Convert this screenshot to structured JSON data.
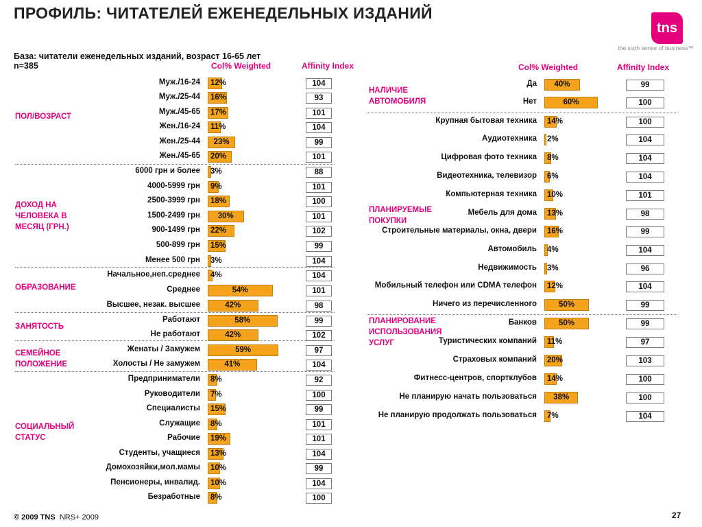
{
  "header": {
    "title": "ПРОФИЛЬ: ЧИТАТЕЛЕЙ ЕЖЕНЕДЕЛЬНЫХ ИЗДАНИЙ",
    "logo_text": "tns",
    "tagline": "the sixth sense of business™",
    "base_line1": "База: читатели еженедельных изданий, возраст 16-65 лет",
    "base_line2": "n=385"
  },
  "left_panel": {
    "col_header_1": "Col% Weighted",
    "col_header_2": "Affinity Index",
    "categories": [
      {
        "name": "ПОЛ/ВОЗРАСТ",
        "rows": [
          {
            "label": "Муж./16-24",
            "value": 12,
            "index": 104
          },
          {
            "label": "Муж./25-44",
            "value": 16,
            "index": 93
          },
          {
            "label": "Муж./45-65",
            "value": 17,
            "index": 101
          },
          {
            "label": "Жен./16-24",
            "value": 11,
            "index": 104
          },
          {
            "label": "Жен./25-44",
            "value": 23,
            "index": 99
          },
          {
            "label": "Жен./45-65",
            "value": 20,
            "index": 101
          }
        ]
      },
      {
        "name": "ДОХОД НА ЧЕЛОВЕКА В МЕСЯЦ (ГРН.)",
        "rows": [
          {
            "label": "6000 грн и более",
            "value": 3,
            "index": 88
          },
          {
            "label": "4000-5999 грн",
            "value": 9,
            "index": 101
          },
          {
            "label": "2500-3999 грн",
            "value": 18,
            "index": 100
          },
          {
            "label": "1500-2499 грн",
            "value": 30,
            "index": 101
          },
          {
            "label": "900-1499 грн",
            "value": 22,
            "index": 102
          },
          {
            "label": "500-899 грн",
            "value": 15,
            "index": 99
          },
          {
            "label": "Менее 500 грн",
            "value": 3,
            "index": 104
          }
        ]
      },
      {
        "name": "ОБРАЗОВАНИЕ",
        "rows": [
          {
            "label": "Начальное,неп.среднее",
            "value": 4,
            "index": 104
          },
          {
            "label": "Среднее",
            "value": 54,
            "index": 101
          },
          {
            "label": "Высшее, незак. высшее",
            "value": 42,
            "index": 98
          }
        ]
      },
      {
        "name": "ЗАНЯТОСТЬ",
        "rows": [
          {
            "label": "Работают",
            "value": 58,
            "index": 99
          },
          {
            "label": "Не работают",
            "value": 42,
            "index": 102
          }
        ]
      },
      {
        "name": "СЕМЕЙНОЕ ПОЛОЖЕНИЕ",
        "rows": [
          {
            "label": "Женаты / Замужем",
            "value": 59,
            "index": 97
          },
          {
            "label": "Холосты / Не замужем",
            "value": 41,
            "index": 104
          }
        ]
      },
      {
        "name": "СОЦИАЛЬНЫЙ СТАТУС",
        "rows": [
          {
            "label": "Предприниматели",
            "value": 8,
            "index": 92
          },
          {
            "label": "Руководители",
            "value": 7,
            "index": 100
          },
          {
            "label": "Специалисты",
            "value": 15,
            "index": 99
          },
          {
            "label": "Служащие",
            "value": 8,
            "index": 101
          },
          {
            "label": "Рабочие",
            "value": 19,
            "index": 101
          },
          {
            "label": "Студенты, учащиеся",
            "value": 13,
            "index": 104
          },
          {
            "label": "Домохозяйки,мол.мамы",
            "value": 10,
            "index": 99
          },
          {
            "label": "Пенсионеры, инвалид.",
            "value": 10,
            "index": 104
          },
          {
            "label": "Безработные",
            "value": 8,
            "index": 100
          }
        ]
      }
    ]
  },
  "right_panel": {
    "col_header_1": "Col% Weighted",
    "col_header_2": "Affinity Index",
    "categories": [
      {
        "name": "НАЛИЧИЕ АВТОМОБИЛЯ",
        "rows": [
          {
            "label": "Да",
            "value": 40,
            "index": 99
          },
          {
            "label": "Нет",
            "value": 60,
            "index": 100
          }
        ]
      },
      {
        "name": "ПЛАНИРУЕМЫЕ ПОКУПКИ",
        "rows": [
          {
            "label": "Крупная бытовая техника",
            "value": 14,
            "index": 100
          },
          {
            "label": "Аудиотехника",
            "value": 2,
            "index": 104
          },
          {
            "label": "Цифровая фото техника",
            "value": 8,
            "index": 104
          },
          {
            "label": "Видеотехника, телевизор",
            "value": 6,
            "index": 104
          },
          {
            "label": "Компьютерная техника",
            "value": 10,
            "index": 101
          },
          {
            "label": "Мебель для дома",
            "value": 13,
            "index": 98
          },
          {
            "label": "Строительные материалы, окна, двери",
            "value": 16,
            "index": 99
          },
          {
            "label": "Автомобиль",
            "value": 4,
            "index": 104
          },
          {
            "label": "Недвижимость",
            "value": 3,
            "index": 96
          },
          {
            "label": "Мобильный телефон или CDMA телефон",
            "value": 12,
            "index": 104
          },
          {
            "label": "Ничего из перечисленного",
            "value": 50,
            "index": 99
          }
        ]
      },
      {
        "name": "ПЛАНИРОВАНИЕ ИСПОЛЬЗОВАНИЯ УСЛУГ",
        "rows": [
          {
            "label": "Банков",
            "value": 50,
            "index": 99
          },
          {
            "label": "Туристических компаний",
            "value": 11,
            "index": 97
          },
          {
            "label": "Страховых компаний",
            "value": 20,
            "index": 103
          },
          {
            "label": "Фитнесс-центров, спортклубов",
            "value": 14,
            "index": 100
          },
          {
            "label": "Не планирую начать пользоваться",
            "value": 38,
            "index": 100
          },
          {
            "label": "Не планирую продолжать пользоваться",
            "value": 7,
            "index": 104
          }
        ]
      }
    ]
  },
  "footer": {
    "copyright": "© 2009 TNS",
    "source": "NRS+ 2009",
    "page_number": "27"
  },
  "colors": {
    "accent": "#e5007d",
    "bar": "#f5a31d"
  }
}
